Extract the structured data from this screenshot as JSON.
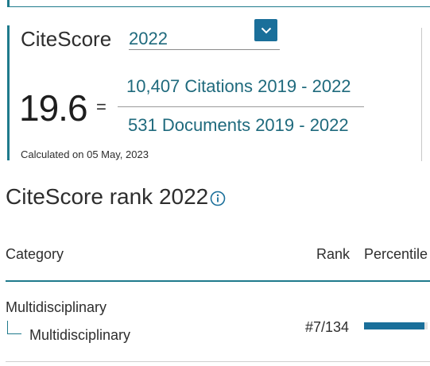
{
  "citescore": {
    "label": "CiteScore",
    "selected_year": "2022",
    "score": "19.6",
    "equals": "=",
    "citations_text": "10,407 Citations 2019 - 2022",
    "documents_text": "531 Documents 2019 - 2022",
    "calculated_note": "Calculated on 05 May, 2023"
  },
  "rank": {
    "title": "CiteScore rank 2022",
    "columns": {
      "category": "Category",
      "rank": "Rank",
      "percentile": "Percentile"
    },
    "rows": [
      {
        "parent_category": "Multidisciplinary",
        "sub_category": "Multidisciplinary",
        "rank": "#7/134",
        "percentile_fraction": 0.95
      }
    ]
  },
  "colors": {
    "accent": "#1f7a8c",
    "link": "#1f6a7d",
    "button": "#1a6f9a"
  },
  "icons": {
    "select_arrow": "chevron-down-icon",
    "info": "info-icon"
  }
}
